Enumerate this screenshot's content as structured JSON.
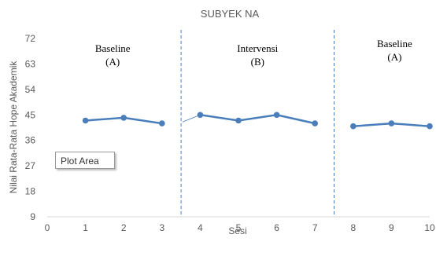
{
  "chart_data": {
    "type": "line",
    "title": "SUBYEK NA",
    "xlabel": "Sesi",
    "ylabel": "Nilai Rata-Rata Hope Akademik",
    "xlim": [
      0,
      10
    ],
    "ylim": [
      9,
      72
    ],
    "xticks": [
      0,
      1,
      2,
      3,
      4,
      5,
      6,
      7,
      8,
      9,
      10
    ],
    "yticks": [
      9,
      18,
      27,
      36,
      45,
      54,
      63,
      72
    ],
    "series_color": "#4a7ebb",
    "phase_line_color": "#4a7ebb",
    "series": [
      {
        "x": [
          1,
          2,
          3
        ],
        "y": [
          43,
          44,
          42
        ]
      },
      {
        "x": [
          4,
          5,
          6,
          7
        ],
        "y": [
          45,
          43,
          45,
          42
        ]
      },
      {
        "x": [
          8,
          9,
          10
        ],
        "y": [
          41,
          42,
          41
        ]
      }
    ],
    "phase_lines": [
      3.5,
      7.5
    ],
    "phases": [
      {
        "line1": "Baseline",
        "line2": "(A)"
      },
      {
        "line1": "Intervensi",
        "line2": "(B)"
      },
      {
        "line1": "Baseline",
        "line2": "(A)"
      }
    ]
  },
  "tooltip": "Plot Area"
}
